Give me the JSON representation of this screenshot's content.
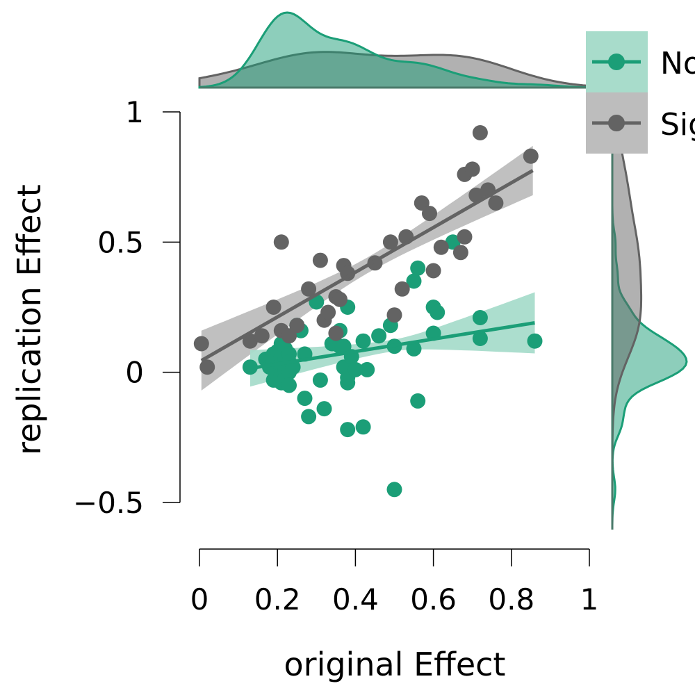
{
  "chart_data": {
    "type": "scatter",
    "title": "",
    "xlabel": "original Effect",
    "ylabel": "replication Effect",
    "xlim": [
      0,
      1
    ],
    "ylim": [
      -0.5,
      1
    ],
    "xticks": [
      0,
      0.2,
      0.4,
      0.6,
      0.8,
      1
    ],
    "yticks": [
      -0.5,
      0,
      0.5,
      1
    ],
    "xtick_labels": [
      "0",
      "0.2",
      "0.4",
      "0.6",
      "0.8",
      "1"
    ],
    "ytick_labels": [
      "−0.5",
      "0",
      "0.5",
      "1"
    ],
    "grid": false,
    "legend_position": "top-right",
    "marginal_densities": true,
    "series": [
      {
        "name": "Nonsignificant",
        "legend_label": "No",
        "color": "#1b9e77",
        "band_color": "#a8dccb",
        "regression": {
          "x": [
            0.13,
            0.86
          ],
          "y": [
            0.015,
            0.19
          ],
          "ci_low_end": [
            -0.055,
            0.075
          ],
          "ci_high_end": [
            0.085,
            0.31
          ]
        },
        "points": [
          [
            0.13,
            0.02
          ],
          [
            0.17,
            0.05
          ],
          [
            0.18,
            0.02
          ],
          [
            0.19,
            0.07
          ],
          [
            0.19,
            0.04
          ],
          [
            0.19,
            -0.03
          ],
          [
            0.2,
            0.08
          ],
          [
            0.2,
            0.05
          ],
          [
            0.2,
            0.02
          ],
          [
            0.2,
            -0.01
          ],
          [
            0.21,
            0.11
          ],
          [
            0.21,
            0.06
          ],
          [
            0.21,
            0.03
          ],
          [
            0.21,
            -0.01
          ],
          [
            0.21,
            -0.04
          ],
          [
            0.22,
            0.09
          ],
          [
            0.22,
            0.05
          ],
          [
            0.22,
            0.01
          ],
          [
            0.22,
            -0.02
          ],
          [
            0.23,
            0.07
          ],
          [
            0.23,
            0.04
          ],
          [
            0.23,
            0.0
          ],
          [
            0.23,
            -0.05
          ],
          [
            0.24,
            0.02
          ],
          [
            0.25,
            0.18
          ],
          [
            0.26,
            0.16
          ],
          [
            0.27,
            -0.1
          ],
          [
            0.27,
            0.07
          ],
          [
            0.28,
            -0.17
          ],
          [
            0.3,
            0.27
          ],
          [
            0.31,
            -0.03
          ],
          [
            0.32,
            -0.14
          ],
          [
            0.34,
            0.11
          ],
          [
            0.36,
            0.16
          ],
          [
            0.36,
            0.1
          ],
          [
            0.37,
            0.02
          ],
          [
            0.37,
            0.1
          ],
          [
            0.38,
            0.25
          ],
          [
            0.38,
            -0.04
          ],
          [
            0.38,
            -0.02
          ],
          [
            0.38,
            -0.22
          ],
          [
            0.39,
            0.06
          ],
          [
            0.4,
            0.01
          ],
          [
            0.42,
            0.12
          ],
          [
            0.42,
            -0.21
          ],
          [
            0.43,
            0.01
          ],
          [
            0.46,
            0.14
          ],
          [
            0.49,
            0.18
          ],
          [
            0.5,
            0.1
          ],
          [
            0.5,
            -0.45
          ],
          [
            0.55,
            0.35
          ],
          [
            0.55,
            0.09
          ],
          [
            0.56,
            0.4
          ],
          [
            0.56,
            -0.11
          ],
          [
            0.6,
            0.25
          ],
          [
            0.6,
            0.15
          ],
          [
            0.61,
            0.23
          ],
          [
            0.65,
            0.5
          ],
          [
            0.72,
            0.13
          ],
          [
            0.72,
            0.21
          ],
          [
            0.86,
            0.12
          ]
        ]
      },
      {
        "name": "Significant",
        "legend_label": "Sig",
        "color": "#636363",
        "band_color": "#bdbdbd",
        "regression": {
          "x": [
            0.005,
            0.855
          ],
          "y": [
            0.045,
            0.775
          ],
          "ci_low_end": [
            -0.07,
            0.68
          ],
          "ci_high_end": [
            0.16,
            0.87
          ]
        },
        "points": [
          [
            0.005,
            0.11
          ],
          [
            0.02,
            0.02
          ],
          [
            0.13,
            0.12
          ],
          [
            0.16,
            0.14
          ],
          [
            0.19,
            0.25
          ],
          [
            0.21,
            0.5
          ],
          [
            0.21,
            0.16
          ],
          [
            0.23,
            0.14
          ],
          [
            0.25,
            0.18
          ],
          [
            0.28,
            0.32
          ],
          [
            0.31,
            0.43
          ],
          [
            0.32,
            0.2
          ],
          [
            0.33,
            0.23
          ],
          [
            0.35,
            0.29
          ],
          [
            0.35,
            0.15
          ],
          [
            0.36,
            0.28
          ],
          [
            0.37,
            0.41
          ],
          [
            0.38,
            0.38
          ],
          [
            0.45,
            0.42
          ],
          [
            0.49,
            0.5
          ],
          [
            0.5,
            0.22
          ],
          [
            0.52,
            0.32
          ],
          [
            0.53,
            0.52
          ],
          [
            0.57,
            0.65
          ],
          [
            0.59,
            0.61
          ],
          [
            0.6,
            0.39
          ],
          [
            0.62,
            0.48
          ],
          [
            0.67,
            0.46
          ],
          [
            0.68,
            0.76
          ],
          [
            0.68,
            0.52
          ],
          [
            0.7,
            0.78
          ],
          [
            0.71,
            0.68
          ],
          [
            0.72,
            0.92
          ],
          [
            0.74,
            0.7
          ],
          [
            0.76,
            0.65
          ],
          [
            0.85,
            0.83
          ]
        ]
      }
    ]
  }
}
